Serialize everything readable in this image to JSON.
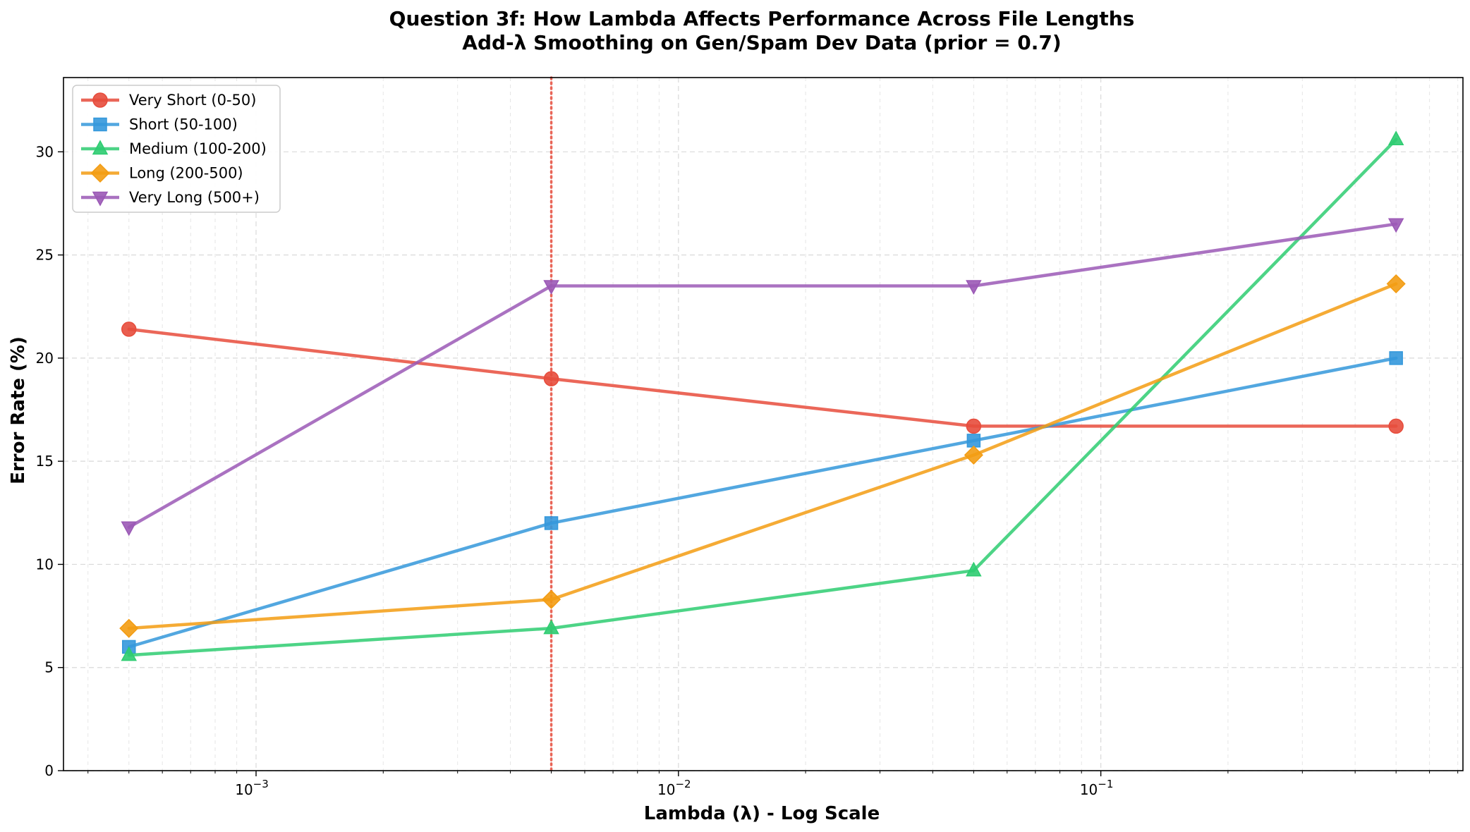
{
  "chart_data": {
    "type": "line",
    "title": "Question 3f: How Lambda Affects Performance Across File Lengths",
    "subtitle": "Add-λ Smoothing on Gen/Spam Dev Data (prior = 0.7)",
    "xlabel": "Lambda (λ) - Log Scale",
    "ylabel": "Error Rate (%)",
    "xscale": "log",
    "x": [
      0.0005,
      0.005,
      0.05,
      0.5
    ],
    "xlim": [
      0.00035,
      0.72
    ],
    "ylim": [
      0,
      33.6
    ],
    "y_ticks": [
      0,
      5,
      10,
      15,
      20,
      25,
      30
    ],
    "x_ticks": [
      {
        "value": 0.001,
        "base": "10",
        "exp": "−3"
      },
      {
        "value": 0.01,
        "base": "10",
        "exp": "−2"
      },
      {
        "value": 0.1,
        "base": "10",
        "exp": "−1"
      }
    ],
    "grid": true,
    "legend_position": "top-left",
    "reference_line": {
      "x": 0.005,
      "color": "#e74c3c",
      "style": "dotted"
    },
    "series": [
      {
        "name": "Very Short (0-50)",
        "color": "#e74c3c",
        "marker": "circle",
        "values": [
          21.4,
          19.0,
          16.7,
          16.7
        ]
      },
      {
        "name": "Short (50-100)",
        "color": "#3498db",
        "marker": "square",
        "values": [
          6.0,
          12.0,
          16.0,
          20.0
        ]
      },
      {
        "name": "Medium (100-200)",
        "color": "#2ecc71",
        "marker": "triangle-up",
        "values": [
          5.6,
          6.9,
          9.7,
          30.6
        ]
      },
      {
        "name": "Long (200-500)",
        "color": "#f39c12",
        "marker": "diamond",
        "values": [
          6.9,
          8.3,
          15.3,
          23.6
        ]
      },
      {
        "name": "Very Long (500+)",
        "color": "#9b59b6",
        "marker": "triangle-down",
        "values": [
          11.8,
          23.5,
          23.5,
          26.5
        ]
      }
    ]
  }
}
